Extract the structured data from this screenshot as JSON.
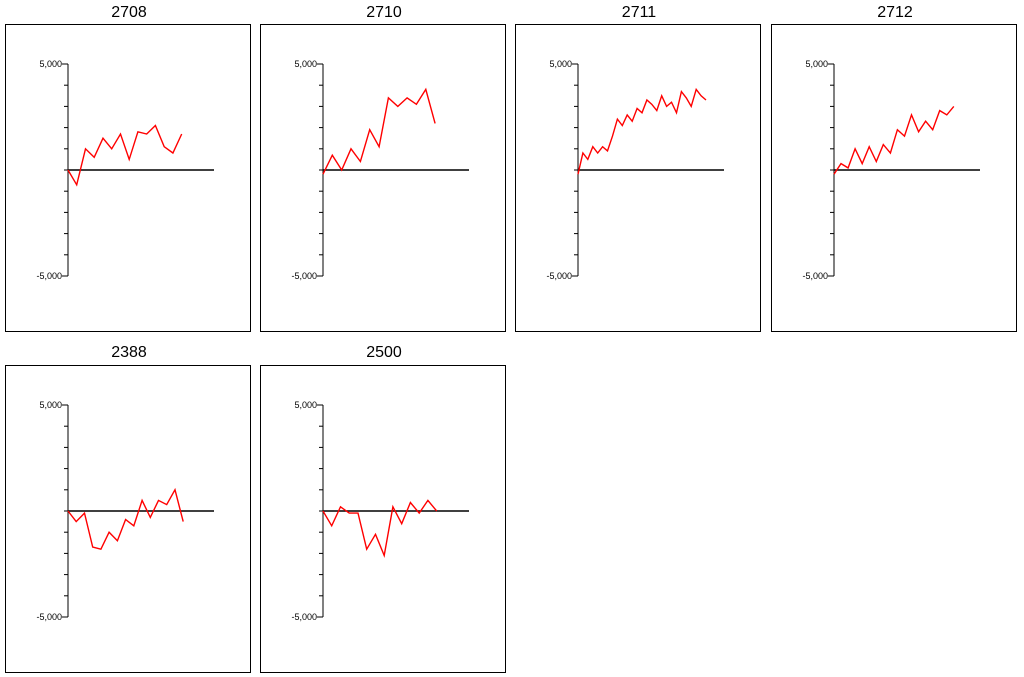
{
  "colors": {
    "axis": "#000000",
    "series": "#ff0000"
  },
  "chart_data": [
    {
      "type": "line",
      "title": "2708",
      "ylim": [
        -5000,
        5000
      ],
      "yticks": [
        "5,000",
        "-5,000"
      ],
      "series": [
        {
          "values": [
            0,
            -700,
            1000,
            600,
            1500,
            1000,
            1700,
            500,
            1800,
            1700,
            2100,
            1100,
            800,
            1700
          ]
        }
      ]
    },
    {
      "type": "line",
      "title": "2710",
      "ylim": [
        -5000,
        5000
      ],
      "yticks": [
        "5,000",
        "-5,000"
      ],
      "series": [
        {
          "values": [
            -200,
            700,
            0,
            1000,
            400,
            1900,
            1100,
            3400,
            3000,
            3400,
            3100,
            3800,
            2200
          ]
        }
      ]
    },
    {
      "type": "line",
      "title": "2711",
      "ylim": [
        -5000,
        5000
      ],
      "yticks": [
        "5,000",
        "-5,000"
      ],
      "series": [
        {
          "values": [
            -200,
            800,
            500,
            1100,
            800,
            1100,
            900,
            1600,
            2400,
            2100,
            2600,
            2300,
            2900,
            2700,
            3300,
            3100,
            2800,
            3500,
            3000,
            3200,
            2700,
            3700,
            3400,
            3000,
            3800,
            3500,
            3300
          ]
        }
      ]
    },
    {
      "type": "line",
      "title": "2712",
      "ylim": [
        -5000,
        5000
      ],
      "yticks": [
        "5,000",
        "-5,000"
      ],
      "series": [
        {
          "values": [
            -200,
            300,
            100,
            1000,
            300,
            1100,
            400,
            1200,
            800,
            1900,
            1600,
            2600,
            1800,
            2300,
            1900,
            2800,
            2600,
            3000
          ]
        }
      ]
    },
    {
      "type": "line",
      "title": "2388",
      "ylim": [
        -5000,
        5000
      ],
      "yticks": [
        "5,000",
        "-5,000"
      ],
      "series": [
        {
          "values": [
            0,
            -500,
            -100,
            -1700,
            -1800,
            -1000,
            -1400,
            -400,
            -700,
            500,
            -300,
            500,
            300,
            1000,
            -500
          ]
        }
      ]
    },
    {
      "type": "line",
      "title": "2500",
      "ylim": [
        -5000,
        5000
      ],
      "yticks": [
        "5,000",
        "-5,000"
      ],
      "series": [
        {
          "values": [
            0,
            -700,
            200,
            -100,
            -100,
            -1800,
            -1100,
            -2100,
            200,
            -600,
            400,
            -100,
            500,
            0
          ]
        }
      ]
    }
  ]
}
